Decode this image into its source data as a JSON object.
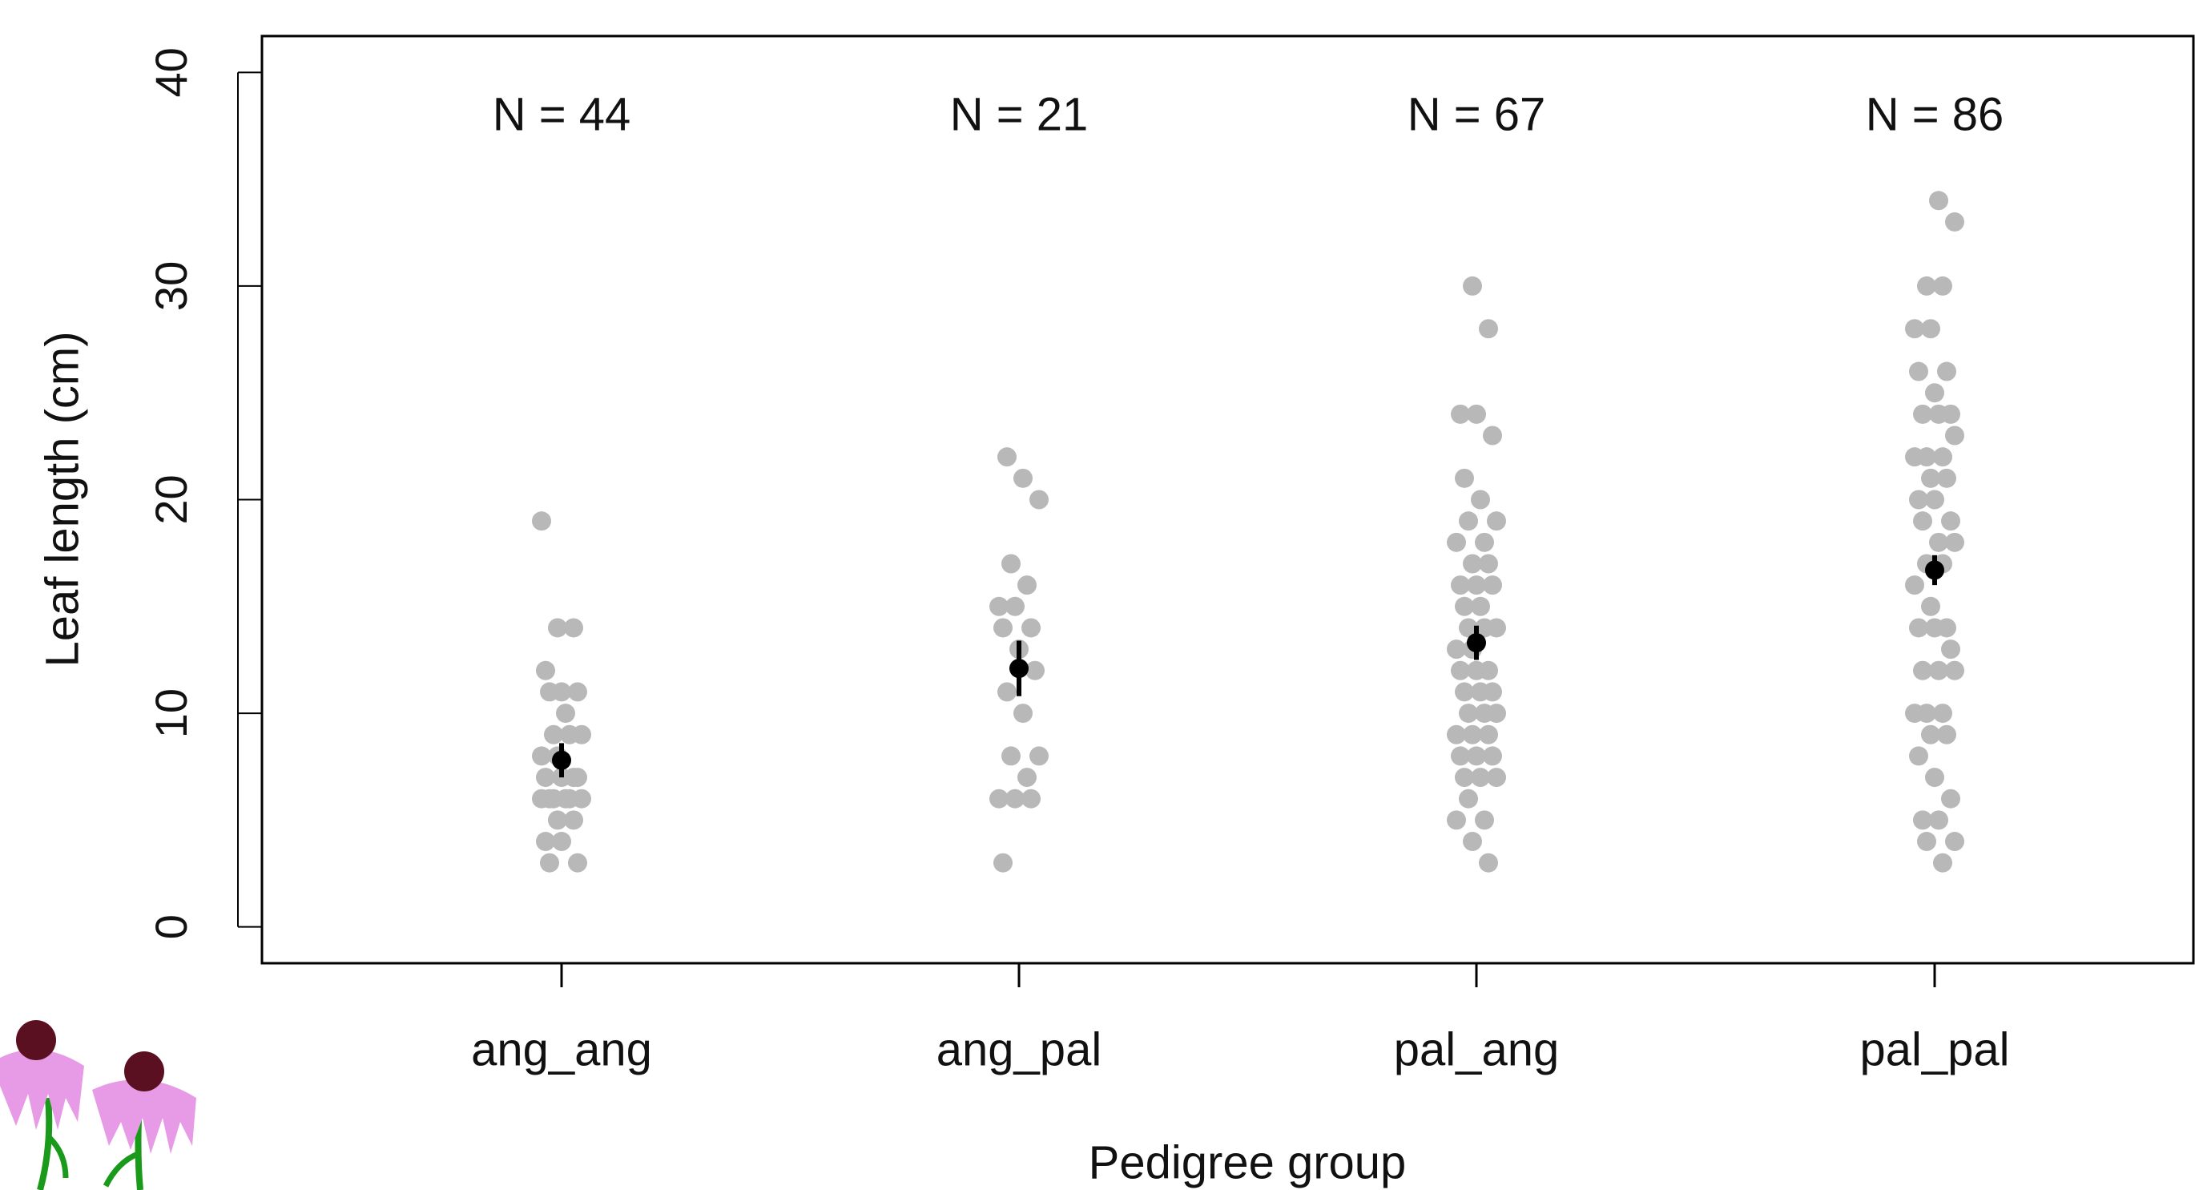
{
  "chart_data": {
    "type": "strip",
    "y_label": "Leaf length (cm)",
    "x_label": "Pedigree group",
    "categories": [
      "ang_ang",
      "ang_pal",
      "pal_ang",
      "pal_pal"
    ],
    "annotations": [
      "N = 44",
      "N = 21",
      "N = 67",
      "N = 86"
    ],
    "points": [
      [
        19,
        14,
        14,
        12,
        11,
        11,
        11,
        10,
        9,
        9,
        9,
        8,
        8,
        7,
        7,
        7,
        7,
        6,
        6,
        6,
        6,
        6,
        6,
        5,
        5,
        4,
        4,
        3,
        3
      ],
      [
        22,
        21,
        20,
        17,
        16,
        15,
        15,
        14,
        14,
        13,
        12,
        11,
        10,
        8,
        8,
        7,
        6,
        6,
        6,
        3
      ],
      [
        30,
        28,
        24,
        24,
        23,
        21,
        20,
        19,
        19,
        18,
        18,
        17,
        17,
        16,
        16,
        16,
        15,
        15,
        14,
        14,
        14,
        13,
        13,
        12,
        12,
        12,
        11,
        11,
        11,
        10,
        10,
        10,
        9,
        9,
        9,
        8,
        8,
        8,
        7,
        7,
        7,
        6,
        5,
        5,
        4,
        3
      ],
      [
        34,
        33,
        30,
        30,
        28,
        28,
        26,
        26,
        25,
        24,
        24,
        24,
        23,
        22,
        22,
        22,
        21,
        21,
        20,
        20,
        19,
        19,
        18,
        18,
        17,
        17,
        16,
        15,
        14,
        14,
        14,
        13,
        12,
        12,
        12,
        10,
        10,
        10,
        9,
        9,
        8,
        7,
        6,
        5,
        5,
        4,
        4,
        3
      ]
    ],
    "means": [
      7.8,
      12.1,
      13.3,
      16.7
    ],
    "errors": [
      0.8,
      1.3,
      0.8,
      0.7
    ],
    "point_color": "#b8b8b8",
    "mean_color": "#000000",
    "ylim": [
      -1.7,
      41.7
    ],
    "yticks": [
      0,
      10,
      20,
      30,
      40
    ]
  }
}
